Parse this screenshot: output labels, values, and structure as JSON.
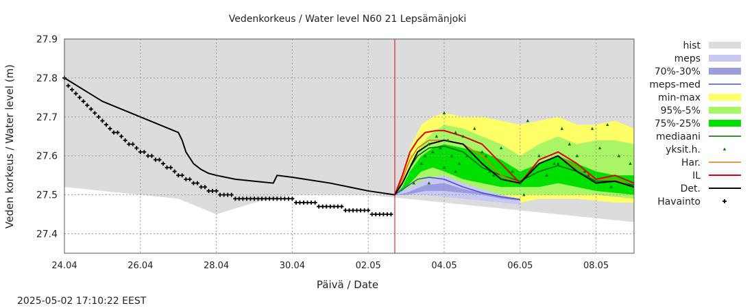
{
  "chart_data": {
    "type": "line",
    "title": "Vedenkorkeus / Water level   N60 21 Lepsämänjoki",
    "xlabel": "Päivä / Date",
    "ylabel": "Veden korkeus / Water level (m)",
    "xlim": [
      0,
      15
    ],
    "ylim": [
      27.35,
      27.9
    ],
    "x_unit": "days since 24.04",
    "grid": true,
    "legend_position": "right",
    "x_ticks": [
      {
        "value": 0,
        "label": "24.04"
      },
      {
        "value": 2,
        "label": "26.04"
      },
      {
        "value": 4,
        "label": "28.04"
      },
      {
        "value": 6,
        "label": "30.04"
      },
      {
        "value": 8,
        "label": "02.05"
      },
      {
        "value": 10,
        "label": "04.05"
      },
      {
        "value": 12,
        "label": "06.05"
      },
      {
        "value": 14,
        "label": "08.05"
      }
    ],
    "y_ticks": [
      {
        "value": 27.4,
        "label": "27.4"
      },
      {
        "value": 27.5,
        "label": "27.5"
      },
      {
        "value": 27.6,
        "label": "27.6"
      },
      {
        "value": 27.7,
        "label": "27.7"
      },
      {
        "value": 27.8,
        "label": "27.8"
      },
      {
        "value": 27.9,
        "label": "27.9"
      }
    ],
    "current_time_x": 8.7,
    "timestamp": "2025-05-02 17:10:22 EEST",
    "colors": {
      "hist": "#dcdcdc",
      "meps": "#c8c8f5",
      "meps_70_30": "#9b9be0",
      "meps_med": "#4a4ad0",
      "min_max": "#ffff66",
      "p95_5": "#aaf566",
      "p75_25": "#00e000",
      "mediaani": "#006400",
      "yksit": "#007000",
      "har": "#e07800",
      "il": "#dd0000",
      "det": "#000000",
      "havainto": "#000000",
      "now_line": "#dd0000",
      "grid": "#999999"
    },
    "legend": [
      {
        "key": "hist",
        "label": "hist",
        "style": "band"
      },
      {
        "key": "meps",
        "label": "meps",
        "style": "band"
      },
      {
        "key": "meps_70_30",
        "label": "70%-30%",
        "style": "band"
      },
      {
        "key": "meps_med",
        "label": "meps-med",
        "style": "line"
      },
      {
        "key": "min_max",
        "label": "min-max",
        "style": "band"
      },
      {
        "key": "p95_5",
        "label": "95%-5%",
        "style": "band"
      },
      {
        "key": "p75_25",
        "label": "75%-25%",
        "style": "band"
      },
      {
        "key": "mediaani",
        "label": "mediaani",
        "style": "line"
      },
      {
        "key": "yksit",
        "label": "yksit.h.",
        "style": "triangle"
      },
      {
        "key": "har",
        "label": "Har.",
        "style": "line"
      },
      {
        "key": "il",
        "label": "IL",
        "style": "line"
      },
      {
        "key": "det",
        "label": "Det.",
        "style": "line"
      },
      {
        "key": "havainto",
        "label": "Havainto",
        "style": "plus"
      }
    ],
    "bands": {
      "hist": {
        "x": [
          0,
          1,
          2,
          3,
          4,
          5,
          6,
          7,
          8,
          9,
          10,
          11,
          12,
          13,
          14,
          15
        ],
        "lower": [
          27.52,
          27.51,
          27.5,
          27.49,
          27.45,
          27.48,
          27.5,
          27.5,
          27.5,
          27.49,
          27.48,
          27.47,
          27.46,
          27.45,
          27.44,
          27.43
        ],
        "upper": [
          27.9,
          27.9,
          27.9,
          27.9,
          27.9,
          27.9,
          27.9,
          27.9,
          27.9,
          27.9,
          27.9,
          27.9,
          27.9,
          27.9,
          27.9,
          27.9
        ]
      },
      "meps": {
        "x": [
          8.7,
          9,
          9.5,
          10,
          10.5,
          11,
          11.5,
          12
        ],
        "lower": [
          27.5,
          27.5,
          27.5,
          27.495,
          27.49,
          27.485,
          27.48,
          27.475
        ],
        "upper": [
          27.5,
          27.515,
          27.54,
          27.55,
          27.53,
          27.515,
          27.5,
          27.49
        ]
      },
      "meps_70_30": {
        "x": [
          8.7,
          9,
          9.5,
          10,
          10.5,
          11,
          11.5,
          12
        ],
        "lower": [
          27.5,
          27.5,
          27.51,
          27.51,
          27.505,
          27.5,
          27.49,
          27.485
        ],
        "upper": [
          27.5,
          27.505,
          27.525,
          27.53,
          27.515,
          27.505,
          27.495,
          27.49
        ]
      },
      "min_max": {
        "x": [
          8.7,
          8.9,
          9.1,
          9.4,
          9.7,
          10,
          10.5,
          11,
          11.5,
          12,
          12.5,
          13,
          13.5,
          14,
          14.5,
          15
        ],
        "lower": [
          27.5,
          27.5,
          27.5,
          27.505,
          27.5,
          27.5,
          27.495,
          27.49,
          27.49,
          27.48,
          27.49,
          27.49,
          27.49,
          27.485,
          27.48,
          27.48
        ],
        "upper": [
          27.5,
          27.55,
          27.62,
          27.68,
          27.7,
          27.71,
          27.7,
          27.7,
          27.69,
          27.68,
          27.69,
          27.7,
          27.68,
          27.68,
          27.69,
          27.67
        ]
      },
      "p95_5": {
        "x": [
          8.7,
          8.9,
          9.1,
          9.4,
          9.7,
          10,
          10.5,
          11,
          11.5,
          12,
          12.5,
          13,
          13.5,
          14,
          14.5,
          15
        ],
        "lower": [
          27.5,
          27.5,
          27.505,
          27.51,
          27.515,
          27.515,
          27.51,
          27.505,
          27.5,
          27.5,
          27.5,
          27.5,
          27.5,
          27.5,
          27.495,
          27.49
        ],
        "upper": [
          27.5,
          27.53,
          27.58,
          27.63,
          27.66,
          27.68,
          27.67,
          27.65,
          27.63,
          27.6,
          27.63,
          27.65,
          27.63,
          27.64,
          27.64,
          27.63
        ]
      },
      "p75_25": {
        "x": [
          8.7,
          8.9,
          9.1,
          9.4,
          9.7,
          10,
          10.5,
          11,
          11.5,
          12,
          12.5,
          13,
          13.5,
          14,
          14.5,
          15
        ],
        "lower": [
          27.5,
          27.51,
          27.53,
          27.56,
          27.57,
          27.56,
          27.54,
          27.53,
          27.52,
          27.52,
          27.52,
          27.53,
          27.52,
          27.51,
          27.505,
          27.5
        ],
        "upper": [
          27.5,
          27.52,
          27.56,
          27.6,
          27.62,
          27.63,
          27.62,
          27.61,
          27.59,
          27.56,
          27.58,
          27.6,
          27.58,
          27.56,
          27.55,
          27.55
        ]
      }
    },
    "series": [
      {
        "key": "det",
        "name": "Det.",
        "x": [
          0,
          0.5,
          1,
          1.5,
          2,
          2.5,
          3,
          3.1,
          3.2,
          3.4,
          3.6,
          3.8,
          4,
          4.5,
          5,
          5.5,
          5.6,
          6,
          7,
          8,
          8.7,
          8.9,
          9.1,
          9.3,
          9.6,
          10,
          10.5,
          11,
          11.5,
          12,
          12.5,
          13,
          13.5,
          14,
          14.5,
          15
        ],
        "y": [
          27.8,
          27.77,
          27.74,
          27.72,
          27.7,
          27.68,
          27.66,
          27.64,
          27.61,
          27.58,
          27.565,
          27.555,
          27.55,
          27.54,
          27.535,
          27.53,
          27.55,
          27.545,
          27.53,
          27.51,
          27.5,
          27.53,
          27.57,
          27.61,
          27.63,
          27.64,
          27.63,
          27.58,
          27.54,
          27.53,
          27.58,
          27.6,
          27.56,
          27.53,
          27.535,
          27.52
        ]
      },
      {
        "key": "il",
        "name": "IL",
        "x": [
          8.7,
          8.9,
          9.1,
          9.3,
          9.5,
          9.8,
          10,
          10.5,
          11,
          11.5,
          12,
          12.5,
          13,
          13.5,
          14,
          14.5,
          15
        ],
        "y": [
          27.5,
          27.55,
          27.61,
          27.64,
          27.66,
          27.665,
          27.665,
          27.65,
          27.63,
          27.58,
          27.53,
          27.59,
          27.61,
          27.58,
          27.54,
          27.55,
          27.53
        ]
      },
      {
        "key": "har",
        "name": "Har.",
        "x": [
          8.7,
          8.9,
          9.1,
          9.3,
          9.6,
          10,
          10.5,
          11,
          11.5,
          12,
          12.5,
          13,
          13.5,
          14,
          14.5,
          15
        ],
        "y": [
          27.5,
          27.54,
          27.59,
          27.62,
          27.64,
          27.64,
          27.63,
          27.6,
          27.55,
          27.53,
          27.58,
          27.6,
          27.57,
          27.54,
          27.54,
          27.52
        ]
      },
      {
        "key": "mediaani",
        "name": "mediaani",
        "x": [
          8.7,
          8.9,
          9.1,
          9.3,
          9.6,
          10,
          10.5,
          11,
          11.5,
          12,
          12.5,
          13,
          13.5,
          14,
          14.5,
          15
        ],
        "y": [
          27.5,
          27.53,
          27.57,
          27.6,
          27.62,
          27.625,
          27.61,
          27.57,
          27.55,
          27.535,
          27.56,
          27.575,
          27.56,
          27.535,
          27.535,
          27.525
        ]
      },
      {
        "key": "meps_med",
        "name": "meps-med",
        "x": [
          8.7,
          9,
          9.3,
          9.6,
          10,
          10.5,
          11,
          11.5,
          12
        ],
        "y": [
          27.5,
          27.52,
          27.54,
          27.545,
          27.54,
          27.52,
          27.505,
          27.495,
          27.488
        ]
      }
    ],
    "ensemble_points": {
      "key": "yksit",
      "name": "yksit.h.",
      "x": [
        9.2,
        9.4,
        9.5,
        9.6,
        9.7,
        9.8,
        9.9,
        10,
        10,
        10.1,
        10.2,
        10.3,
        10.4,
        10.5,
        10.6,
        10.8,
        11,
        11.1,
        11.3,
        11.5,
        11.8,
        12,
        12.2,
        12.5,
        12.7,
        12.9,
        13.1,
        13.3,
        13.5,
        13.7,
        13.9,
        14.1,
        14.3,
        14.6,
        14.9,
        9.6,
        10.3,
        11.2,
        12.1,
        13.0,
        13.8,
        14.4
      ],
      "y": [
        27.53,
        27.58,
        27.6,
        27.63,
        27.61,
        27.65,
        27.62,
        27.71,
        27.57,
        27.64,
        27.6,
        27.66,
        27.58,
        27.65,
        27.6,
        27.67,
        27.61,
        27.6,
        27.55,
        27.62,
        27.56,
        27.53,
        27.69,
        27.6,
        27.55,
        27.58,
        27.67,
        27.63,
        27.6,
        27.56,
        27.67,
        27.62,
        27.68,
        27.6,
        27.58,
        27.53,
        27.56,
        27.56,
        27.5,
        27.58,
        27.55,
        27.52
      ]
    },
    "observations": {
      "key": "havainto",
      "name": "Havainto",
      "x": [
        0,
        0.1,
        0.2,
        0.3,
        0.4,
        0.5,
        0.6,
        0.7,
        0.8,
        0.9,
        1.0,
        1.1,
        1.2,
        1.3,
        1.4,
        1.5,
        1.6,
        1.7,
        1.8,
        1.9,
        2.0,
        2.1,
        2.2,
        2.3,
        2.4,
        2.5,
        2.6,
        2.7,
        2.8,
        2.9,
        3.0,
        3.1,
        3.2,
        3.3,
        3.4,
        3.5,
        3.6,
        3.7,
        3.8,
        3.9,
        4.0,
        4.1,
        4.2,
        4.3,
        4.4,
        4.5,
        4.6,
        4.7,
        4.8,
        4.9,
        5.0,
        5.1,
        5.2,
        5.3,
        5.4,
        5.5,
        5.6,
        5.7,
        5.8,
        5.9,
        6.0,
        6.1,
        6.2,
        6.3,
        6.4,
        6.5,
        6.6,
        6.7,
        6.8,
        6.9,
        7.0,
        7.1,
        7.2,
        7.3,
        7.4,
        7.5,
        7.6,
        7.7,
        7.8,
        7.9,
        8.0,
        8.1,
        8.2,
        8.3,
        8.4,
        8.5,
        8.6
      ],
      "y": [
        27.8,
        27.78,
        27.77,
        27.76,
        27.75,
        27.74,
        27.73,
        27.72,
        27.71,
        27.7,
        27.69,
        27.68,
        27.67,
        27.66,
        27.66,
        27.65,
        27.64,
        27.63,
        27.63,
        27.62,
        27.61,
        27.61,
        27.6,
        27.6,
        27.59,
        27.59,
        27.58,
        27.57,
        27.57,
        27.56,
        27.55,
        27.55,
        27.54,
        27.54,
        27.53,
        27.53,
        27.52,
        27.52,
        27.51,
        27.51,
        27.51,
        27.5,
        27.5,
        27.5,
        27.5,
        27.49,
        27.49,
        27.49,
        27.49,
        27.49,
        27.49,
        27.49,
        27.49,
        27.49,
        27.49,
        27.49,
        27.49,
        27.49,
        27.49,
        27.49,
        27.49,
        27.48,
        27.48,
        27.48,
        27.48,
        27.48,
        27.48,
        27.47,
        27.47,
        27.47,
        27.47,
        27.47,
        27.47,
        27.47,
        27.46,
        27.46,
        27.46,
        27.46,
        27.46,
        27.46,
        27.46,
        27.45,
        27.45,
        27.45,
        27.45,
        27.45,
        27.45
      ]
    }
  }
}
